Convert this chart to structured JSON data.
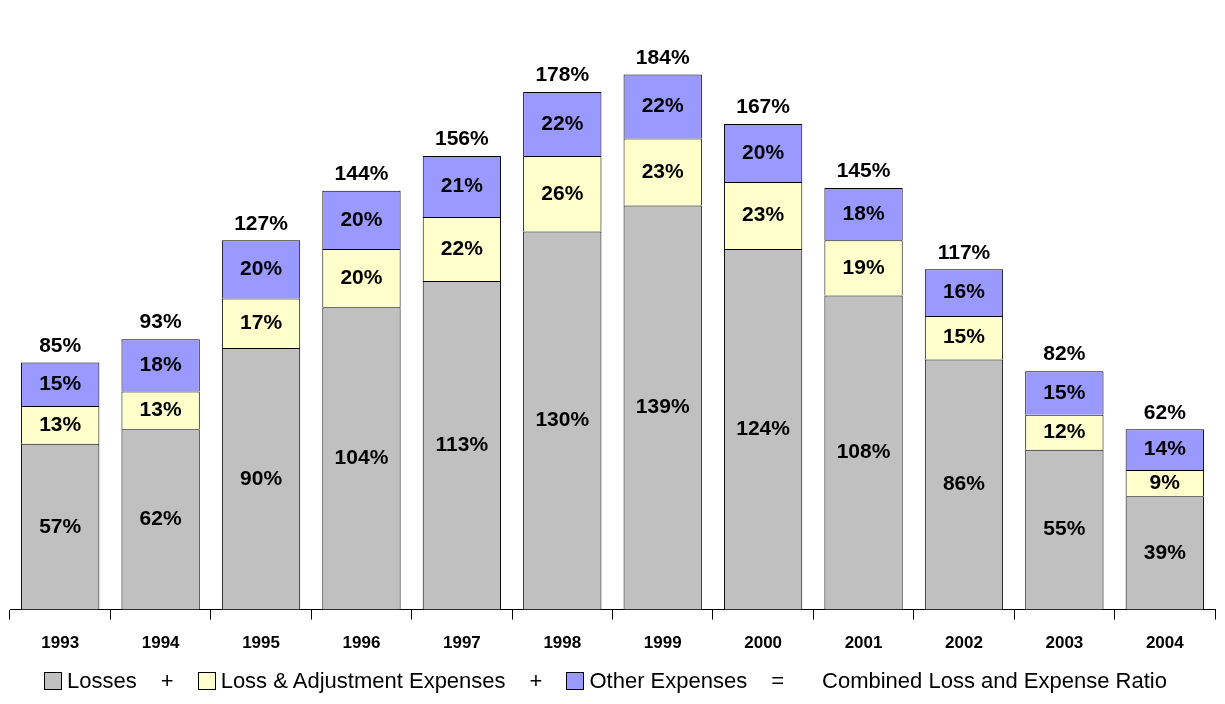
{
  "chart_data": {
    "type": "bar",
    "stacked": true,
    "legend": "bottom",
    "categories": [
      "1993",
      "1994",
      "1995",
      "1996",
      "1997",
      "1998",
      "1999",
      "2000",
      "2001",
      "2002",
      "2003",
      "2004"
    ],
    "series": [
      {
        "name": "Losses",
        "color": "#c0c0c0",
        "values": [
          57,
          62,
          90,
          104,
          113,
          130,
          139,
          124,
          108,
          86,
          55,
          39
        ],
        "value_labels": [
          "57%",
          "62%",
          "90%",
          "104%",
          "113%",
          "130%",
          "139%",
          "124%",
          "108%",
          "86%",
          "55%",
          "39%"
        ]
      },
      {
        "name": "Loss & Adjustment Expenses",
        "color": "#ffffcc",
        "values": [
          13,
          13,
          17,
          20,
          22,
          26,
          23,
          23,
          19,
          15,
          12,
          9
        ],
        "value_labels": [
          "13%",
          "13%",
          "17%",
          "20%",
          "22%",
          "26%",
          "23%",
          "23%",
          "19%",
          "15%",
          "12%",
          "9%"
        ]
      },
      {
        "name": "Other Expenses",
        "color": "#9999ff",
        "values": [
          15,
          18,
          20,
          20,
          21,
          22,
          22,
          20,
          18,
          16,
          15,
          14
        ],
        "value_labels": [
          "15%",
          "18%",
          "20%",
          "20%",
          "21%",
          "22%",
          "22%",
          "20%",
          "18%",
          "16%",
          "15%",
          "14%"
        ]
      }
    ],
    "totals": [
      "85%",
      "93%",
      "127%",
      "144%",
      "156%",
      "178%",
      "184%",
      "167%",
      "145%",
      "117%",
      "82%",
      "62%"
    ],
    "annotations": [
      "+",
      "+",
      "=",
      "Combined Loss and Expense Ratio"
    ]
  }
}
